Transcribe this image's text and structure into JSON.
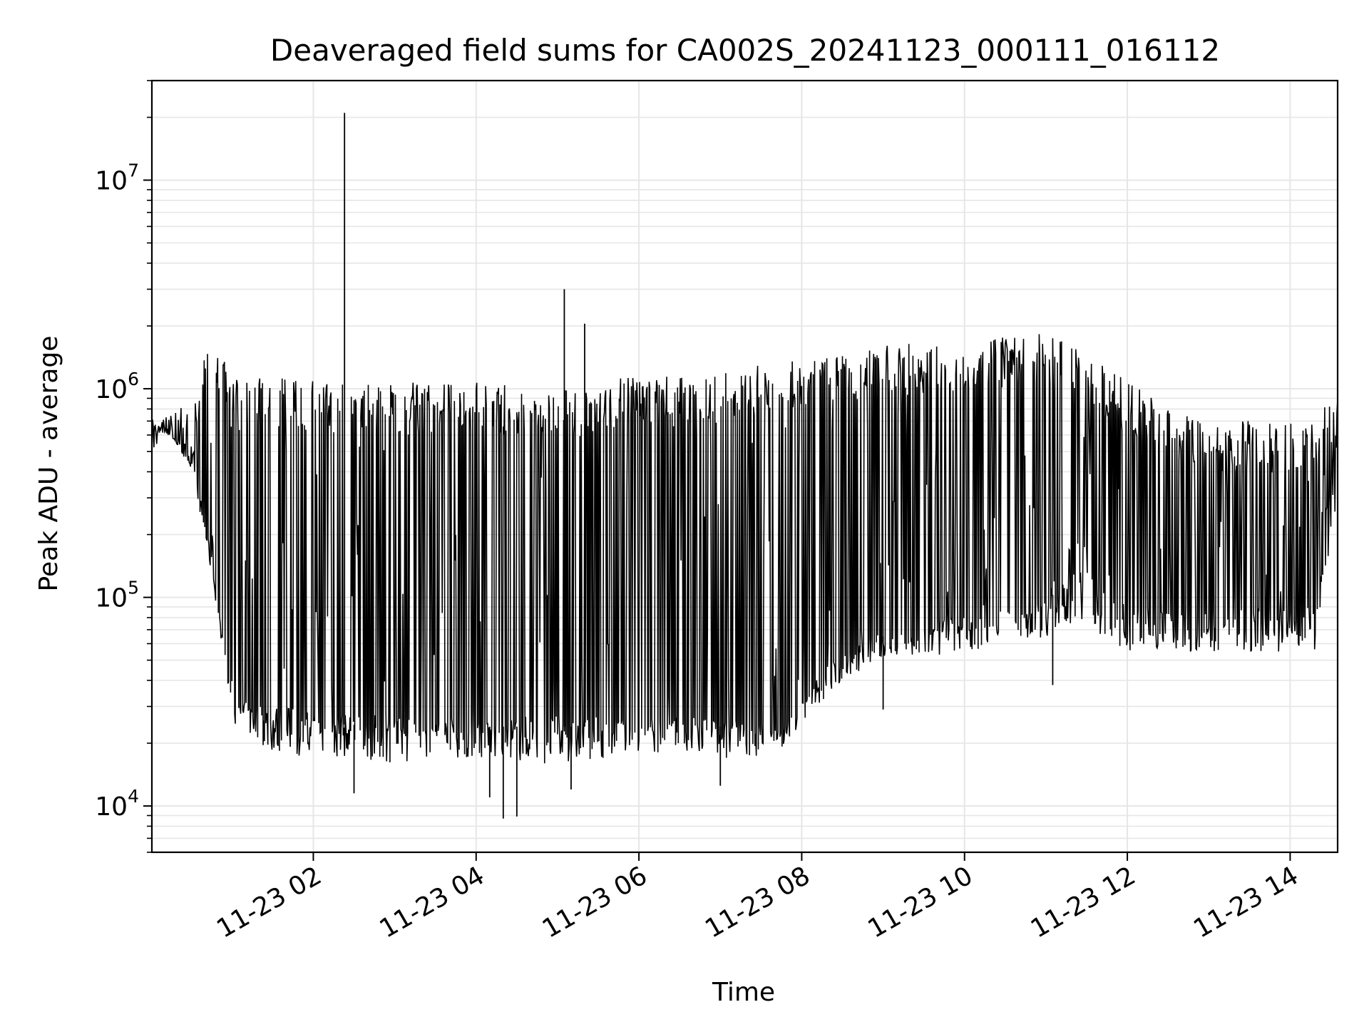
{
  "chart_data": {
    "type": "line",
    "title": "Deaveraged field sums for CA002S_20241123_000111_016112",
    "xlabel": "Time",
    "ylabel": "Peak ADU - average",
    "yscale": "log",
    "grid": true,
    "xlim": [
      "2024-11-23 00:01",
      "2024-11-23 14:35"
    ],
    "ylim": [
      6000,
      30000000
    ],
    "x_ticks": [
      {
        "value": "2024-11-23 02:00",
        "label": "11-23 02"
      },
      {
        "value": "2024-11-23 04:00",
        "label": "11-23 04"
      },
      {
        "value": "2024-11-23 06:00",
        "label": "11-23 06"
      },
      {
        "value": "2024-11-23 08:00",
        "label": "11-23 08"
      },
      {
        "value": "2024-11-23 10:00",
        "label": "11-23 10"
      },
      {
        "value": "2024-11-23 12:00",
        "label": "11-23 12"
      },
      {
        "value": "2024-11-23 14:00",
        "label": "11-23 14"
      }
    ],
    "y_ticks": [
      {
        "value": 10000,
        "base": "10",
        "exp": "4"
      },
      {
        "value": 100000,
        "base": "10",
        "exp": "5"
      },
      {
        "value": 1000000,
        "base": "10",
        "exp": "6"
      },
      {
        "value": 10000000,
        "base": "10",
        "exp": "7"
      }
    ],
    "line_color": "#000000",
    "grid_color": "#e6e6e6",
    "series": [
      {
        "upper": [
          [
            "00:01",
            800000
          ],
          [
            "00:20",
            900000
          ],
          [
            "00:30",
            700000
          ],
          [
            "00:35",
            1200000
          ],
          [
            "00:40",
            1800000
          ],
          [
            "00:50",
            1600000
          ],
          [
            "01:00",
            1100000
          ],
          [
            "01:30",
            1150000
          ],
          [
            "02:00",
            1100000
          ],
          [
            "02:30",
            1050000
          ],
          [
            "03:00",
            1100000
          ],
          [
            "03:30",
            1050000
          ],
          [
            "04:00",
            1100000
          ],
          [
            "04:30",
            1050000
          ],
          [
            "05:00",
            1050000
          ],
          [
            "05:30",
            1100000
          ],
          [
            "06:00",
            1150000
          ],
          [
            "06:30",
            1150000
          ],
          [
            "07:00",
            1200000
          ],
          [
            "07:30",
            1300000
          ],
          [
            "08:00",
            1400000
          ],
          [
            "08:30",
            1500000
          ],
          [
            "09:00",
            1600000
          ],
          [
            "09:30",
            1700000
          ],
          [
            "10:00",
            1750000
          ],
          [
            "10:30",
            1800000
          ],
          [
            "11:00",
            1850000
          ],
          [
            "11:30",
            1500000
          ],
          [
            "12:00",
            1100000
          ],
          [
            "12:30",
            800000
          ],
          [
            "13:00",
            700000
          ],
          [
            "13:30",
            700000
          ],
          [
            "14:00",
            700000
          ],
          [
            "14:20",
            700000
          ],
          [
            "14:35",
            1100000
          ]
        ],
        "lower": [
          [
            "00:01",
            600000
          ],
          [
            "00:15",
            600000
          ],
          [
            "00:30",
            400000
          ],
          [
            "00:40",
            200000
          ],
          [
            "00:50",
            80000
          ],
          [
            "01:00",
            25000
          ],
          [
            "01:30",
            18000
          ],
          [
            "02:00",
            17000
          ],
          [
            "02:30",
            17000
          ],
          [
            "03:00",
            16000
          ],
          [
            "03:30",
            17000
          ],
          [
            "04:00",
            17000
          ],
          [
            "04:30",
            16000
          ],
          [
            "05:00",
            16000
          ],
          [
            "05:30",
            17000
          ],
          [
            "06:00",
            17000
          ],
          [
            "06:30",
            17000
          ],
          [
            "07:00",
            17000
          ],
          [
            "07:30",
            17000
          ],
          [
            "07:45",
            19000
          ],
          [
            "08:00",
            25000
          ],
          [
            "08:30",
            40000
          ],
          [
            "09:00",
            50000
          ],
          [
            "09:30",
            50000
          ],
          [
            "10:00",
            55000
          ],
          [
            "10:30",
            60000
          ],
          [
            "11:00",
            65000
          ],
          [
            "11:30",
            80000
          ],
          [
            "11:45",
            60000
          ],
          [
            "12:00",
            55000
          ],
          [
            "12:30",
            55000
          ],
          [
            "13:00",
            55000
          ],
          [
            "13:30",
            55000
          ],
          [
            "14:00",
            55000
          ],
          [
            "14:20",
            55000
          ],
          [
            "14:35",
            300000
          ]
        ],
        "baseline": [
          [
            "00:01",
            700000
          ],
          [
            "00:30",
            500000
          ],
          [
            "00:45",
            150000
          ],
          [
            "01:00",
            30000
          ],
          [
            "02:00",
            25000
          ],
          [
            "03:00",
            24000
          ],
          [
            "04:00",
            24000
          ],
          [
            "05:00",
            24000
          ],
          [
            "06:00",
            24000
          ],
          [
            "07:00",
            24000
          ],
          [
            "07:45",
            22000
          ],
          [
            "08:00",
            30000
          ],
          [
            "08:30",
            50000
          ],
          [
            "09:00",
            65000
          ],
          [
            "09:30",
            70000
          ],
          [
            "10:00",
            75000
          ],
          [
            "10:30",
            80000
          ],
          [
            "11:00",
            90000
          ],
          [
            "11:30",
            200000
          ],
          [
            "11:45",
            100000
          ],
          [
            "12:00",
            80000
          ],
          [
            "13:00",
            80000
          ],
          [
            "14:00",
            80000
          ],
          [
            "14:20",
            80000
          ],
          [
            "14:35",
            800000
          ]
        ],
        "spikes": [
          [
            "02:23",
            21000000
          ],
          [
            "05:05",
            3000000
          ],
          [
            "05:20",
            2050000
          ],
          [
            "02:30",
            11500
          ],
          [
            "04:10",
            11000
          ],
          [
            "04:20",
            8700
          ],
          [
            "04:30",
            8900
          ],
          [
            "05:10",
            12000
          ],
          [
            "07:00",
            12500
          ],
          [
            "09:00",
            29000
          ],
          [
            "11:05",
            38000
          ]
        ]
      }
    ]
  }
}
